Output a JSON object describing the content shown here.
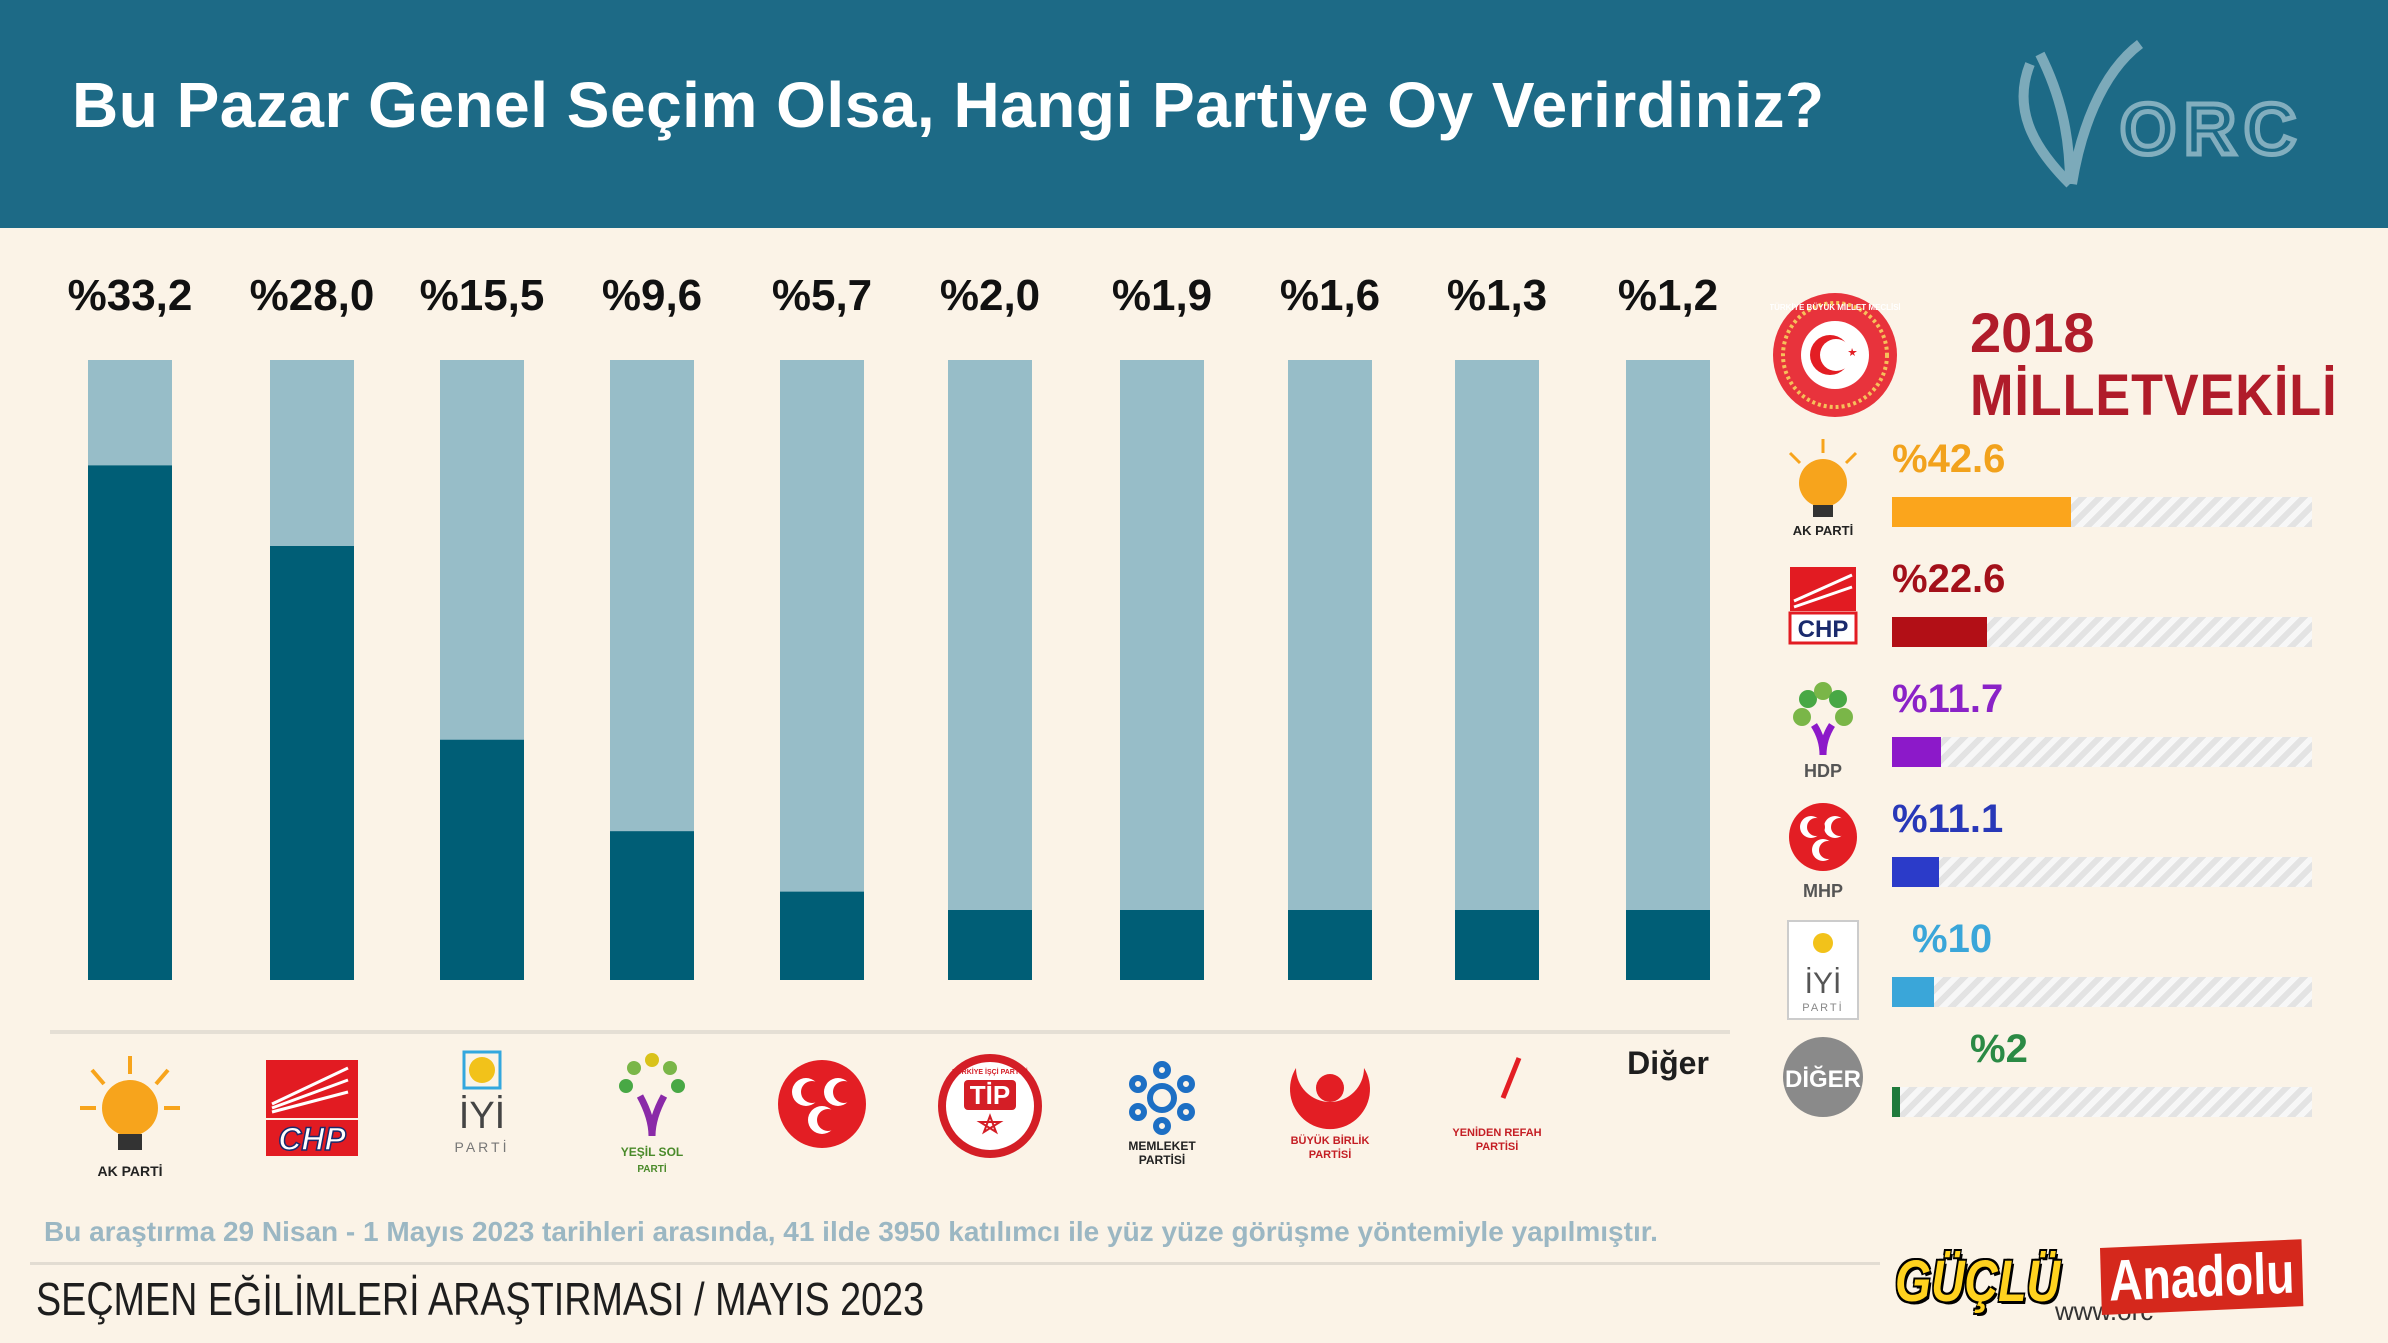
{
  "header": {
    "title": "Bu Pazar Genel Seçim Olsa, Hangi Partiye Oy Verirdiniz?",
    "logo_text": "ORC"
  },
  "chart_data": [
    {
      "type": "bar",
      "categories": [
        "AK PARTİ",
        "CHP",
        "İYİ PARTİ",
        "YEŞİL SOL PARTİ",
        "MHP",
        "TİP",
        "MEMLEKET PARTİSİ",
        "BÜYÜK BİRLİK PARTİSİ",
        "YENİDEN REFAH PARTİSİ",
        "Diğer"
      ],
      "values": [
        33.2,
        28.0,
        15.5,
        9.6,
        5.7,
        2.0,
        1.9,
        1.6,
        1.3,
        1.2
      ],
      "value_labels": [
        "%33,2",
        "%28,0",
        "%15,5",
        "%9,6",
        "%5,7",
        "%2,0",
        "%1,9",
        "%1,6",
        "%1,3",
        "%1,2"
      ],
      "ylim": [
        0,
        40
      ],
      "colors": {
        "fill": "#005e76",
        "track": "#97bdc8"
      }
    },
    {
      "type": "bar",
      "title_year": "2018",
      "title": "MİLLETVEKİLİ",
      "categories": [
        "AK PARTİ",
        "CHP",
        "HDP",
        "MHP",
        "İYİ PARTİ",
        "DİĞER"
      ],
      "values": [
        42.6,
        22.6,
        11.7,
        11.1,
        10,
        2
      ],
      "value_labels": [
        "%42.6",
        "%22.6",
        "%11.7",
        "%11.1",
        "%10",
        "%2"
      ],
      "colors": [
        "#fba51c",
        "#b20f16",
        "#8c19c9",
        "#2b3bc9",
        "#3aa6d9",
        "#1f7a3c"
      ],
      "label_colors": [
        "#f2a21c",
        "#a3101a",
        "#8a22c7",
        "#2838b8",
        "#3aa6d9",
        "#2b8a45"
      ]
    }
  ],
  "party_logos": {
    "akp": "AK PARTİ",
    "chp": "CHP",
    "iyi_main": "İYİ",
    "iyi_sub": "PARTİ",
    "yesil_sol": "YEŞİL SOL",
    "yesil_sol_sub": "PARTİ",
    "tip": "TİP",
    "tip_ring": "TÜRKİYE İŞÇİ PARTİSİ",
    "memleket": "MEMLEKET",
    "memleket_sub": "PARTİSİ",
    "bbp": "BÜYÜK BİRLİK",
    "bbp_sub": "PARTİSİ",
    "yrp": "YENİDEN REFAH",
    "yrp_sub": "PARTİSİ",
    "other": "Diğer"
  },
  "mv_logos": {
    "akp": "AK PARTİ",
    "chp": "CHP",
    "hdp": "HDP",
    "mhp": "MHP",
    "iyi_main": "İYİ",
    "iyi_sub": "PARTİ",
    "other": "DİĞER",
    "emblem_ring": "TÜRKİYE BÜYÜK MİLLET MECLİSİ"
  },
  "footer": {
    "note": "Bu araştırma 29 Nisan - 1 Mayıs 2023 tarihleri arasında, 41 ilde 3950 katılımcı ile yüz yüze görüşme yöntemiyle yapılmıştır.",
    "survey_name": "SEÇMEN EĞİLİMLERİ ARAŞTIRMASI / MAYIS 2023",
    "url": "www.orc",
    "media_part1": "GÜÇLÜ",
    "media_part2": "Anadolu"
  }
}
